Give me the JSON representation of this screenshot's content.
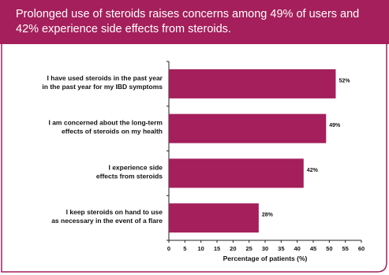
{
  "header": {
    "title": "Prolonged use of steroids raises concerns among 49% of users and 42% experience side effects from steroids."
  },
  "colors": {
    "accent": "#a41f5b",
    "bar": "#a41f5b",
    "frame": "#a41f5b"
  },
  "chart_data": {
    "type": "bar",
    "orientation": "horizontal",
    "categories": [
      [
        "I have used steroids in the past year",
        "in the past year for my IBD symptoms"
      ],
      [
        "I am concerned about the long-term",
        "effects of steroids on my health"
      ],
      [
        "I experience side",
        "effects from steroids"
      ],
      [
        "I keep steroids on hand to use",
        "as necessary in the event of a flare"
      ]
    ],
    "values": [
      52,
      49,
      42,
      28
    ],
    "data_labels": [
      "52%",
      "49%",
      "42%",
      "28%"
    ],
    "xlabel": "Percentage of patients (%)",
    "xlim": [
      0,
      60
    ],
    "xticks": [
      0,
      5,
      10,
      15,
      20,
      25,
      30,
      35,
      40,
      45,
      50,
      55,
      60
    ],
    "grid": false,
    "legend": "none"
  }
}
